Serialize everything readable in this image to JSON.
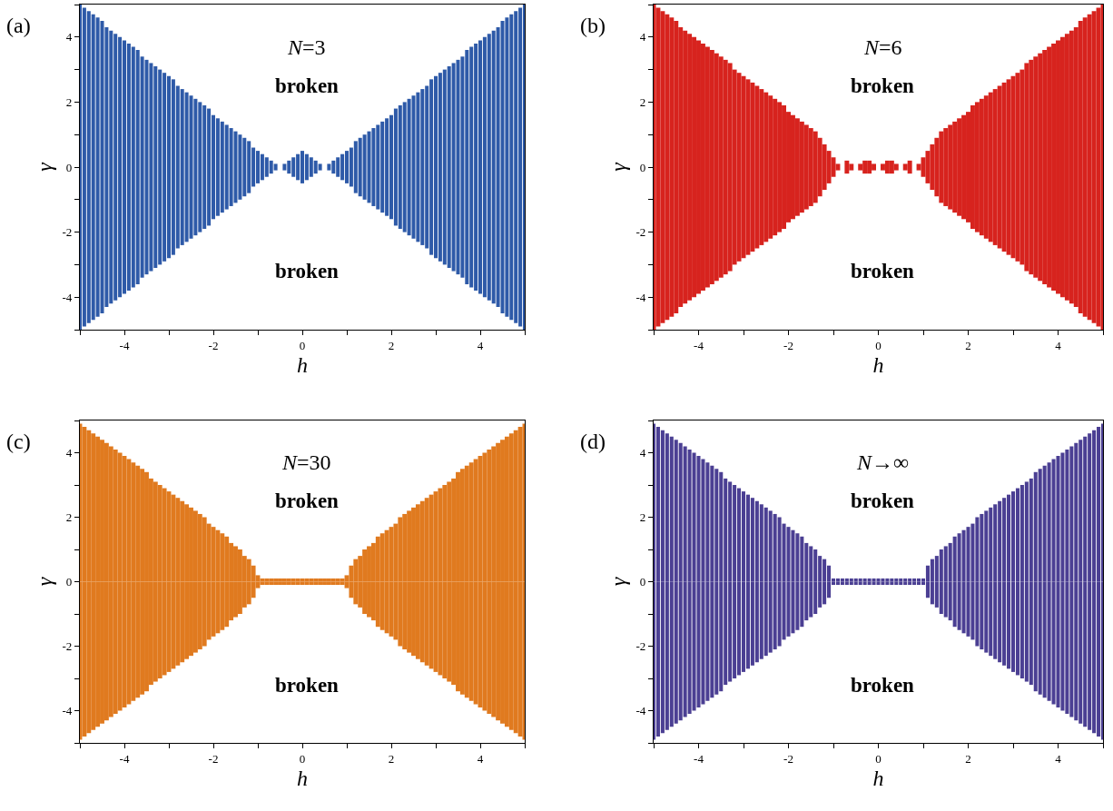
{
  "chart_data": [
    {
      "type": "bar",
      "stacked": true,
      "grid": false,
      "legend": false,
      "xlabel": "h",
      "ylabel": "γ",
      "annotations": [
        "(a)",
        "N=3",
        "broken",
        "broken"
      ],
      "xlim": [
        -5,
        5
      ],
      "ylim": [
        -5,
        5
      ],
      "xticks": [
        {
          "value": -5,
          "label": null
        },
        -4,
        {
          "value": -3,
          "label": null
        },
        -2,
        {
          "value": -1,
          "label": null
        },
        0,
        {
          "value": 1,
          "label": null
        },
        2,
        {
          "value": 3,
          "label": null
        },
        4,
        {
          "value": 5,
          "label": null
        }
      ],
      "yticks": [
        {
          "value": -5,
          "label": null
        },
        -4,
        {
          "value": -3,
          "label": null
        },
        -2,
        {
          "value": -1,
          "label": null
        },
        0,
        {
          "value": 1,
          "label": null
        },
        2,
        {
          "value": 3,
          "label": null
        },
        4,
        {
          "value": 5,
          "label": null
        }
      ],
      "x": [
        -5,
        -4.9,
        -4.8,
        -4.7,
        -4.6,
        -4.5,
        -4.4,
        -4.3,
        -4.2,
        -4.1,
        -4,
        -3.9,
        -3.8,
        -3.7,
        -3.6,
        -3.5,
        -3.4,
        -3.3,
        -3.2,
        -3.1,
        -3,
        -2.9,
        -2.8,
        -2.7,
        -2.6,
        -2.5,
        -2.4,
        -2.3,
        -2.2,
        -2.1,
        -2,
        -1.9,
        -1.8,
        -1.7,
        -1.6,
        -1.5,
        -1.4,
        -1.3,
        -1.2,
        -1.1,
        -1,
        -0.9,
        -0.8,
        -0.7,
        -0.6,
        -0.5,
        -0.4,
        -0.3,
        -0.2,
        -0.1,
        0,
        0.1,
        0.2,
        0.3,
        0.4,
        0.5,
        0.6,
        0.7,
        0.8,
        0.9,
        1,
        1.1,
        1.2,
        1.3,
        1.4,
        1.5,
        1.6,
        1.7,
        1.8,
        1.9,
        2,
        2.1,
        2.2,
        2.3,
        2.4,
        2.5,
        2.6,
        2.7,
        2.8,
        2.9,
        3,
        3.1,
        3.2,
        3.3,
        3.4,
        3.5,
        3.6,
        3.7,
        3.8,
        3.9,
        4,
        4.1,
        4.2,
        4.3,
        4.4,
        4.5,
        4.6,
        4.7,
        4.8,
        4.9,
        5
      ],
      "series": [
        {
          "color": "#2e5aa8",
          "values": [
            5,
            4.9,
            4.8,
            4.7,
            4.6,
            4.5,
            4.3,
            4.2,
            4.1,
            4,
            3.9,
            3.8,
            3.7,
            3.6,
            3.4,
            3.3,
            3.2,
            3.1,
            3,
            2.9,
            2.8,
            2.7,
            2.5,
            2.4,
            2.3,
            2.2,
            2.1,
            2,
            1.9,
            1.8,
            1.6,
            1.5,
            1.4,
            1.3,
            1.2,
            1.1,
            1,
            0.9,
            0.8,
            0.6,
            0.5,
            0.4,
            0.3,
            0.2,
            0.1,
            0,
            0.1,
            0.2,
            0.3,
            0.4,
            0.5,
            0.4,
            0.3,
            0.2,
            0.1,
            0,
            0.1,
            0.2,
            0.3,
            0.4,
            0.5,
            0.6,
            0.8,
            0.9,
            1,
            1.1,
            1.2,
            1.3,
            1.4,
            1.5,
            1.6,
            1.8,
            1.9,
            2,
            2.1,
            2.2,
            2.3,
            2.4,
            2.5,
            2.7,
            2.8,
            2.9,
            3,
            3.1,
            3.2,
            3.3,
            3.4,
            3.6,
            3.7,
            3.8,
            3.9,
            4,
            4.1,
            4.2,
            4.3,
            4.5,
            4.6,
            4.7,
            4.8,
            4.9,
            5
          ]
        },
        {
          "color": "#2e5aa8",
          "values": [
            -5,
            -4.9,
            -4.8,
            -4.7,
            -4.6,
            -4.5,
            -4.3,
            -4.2,
            -4.1,
            -4,
            -3.9,
            -3.8,
            -3.7,
            -3.6,
            -3.4,
            -3.3,
            -3.2,
            -3.1,
            -3,
            -2.9,
            -2.8,
            -2.7,
            -2.5,
            -2.4,
            -2.3,
            -2.2,
            -2.1,
            -2,
            -1.9,
            -1.8,
            -1.6,
            -1.5,
            -1.4,
            -1.3,
            -1.2,
            -1.1,
            -1,
            -0.9,
            -0.8,
            -0.6,
            -0.5,
            -0.4,
            -0.3,
            -0.2,
            -0.1,
            0,
            -0.1,
            -0.2,
            -0.3,
            -0.4,
            -0.5,
            -0.4,
            -0.3,
            -0.2,
            -0.1,
            0,
            -0.1,
            -0.2,
            -0.3,
            -0.4,
            -0.5,
            -0.6,
            -0.8,
            -0.9,
            -1,
            -1.1,
            -1.2,
            -1.3,
            -1.4,
            -1.5,
            -1.6,
            -1.8,
            -1.9,
            -2,
            -2.1,
            -2.2,
            -2.3,
            -2.4,
            -2.5,
            -2.7,
            -2.8,
            -2.9,
            -3,
            -3.1,
            -3.2,
            -3.3,
            -3.4,
            -3.6,
            -3.7,
            -3.8,
            -3.9,
            -4,
            -4.1,
            -4.2,
            -4.3,
            -4.5,
            -4.6,
            -4.7,
            -4.8,
            -4.9,
            -5
          ]
        }
      ]
    },
    {
      "type": "bar",
      "stacked": true,
      "grid": false,
      "legend": false,
      "xlabel": "h",
      "ylabel": "γ",
      "annotations": [
        "(b)",
        "N=6",
        "broken",
        "broken"
      ],
      "xlim": [
        -5,
        5
      ],
      "ylim": [
        -5,
        5
      ],
      "xticks": [
        {
          "value": -5,
          "label": null
        },
        -4,
        {
          "value": -3,
          "label": null
        },
        -2,
        {
          "value": -1,
          "label": null
        },
        0,
        {
          "value": 1,
          "label": null
        },
        2,
        {
          "value": 3,
          "label": null
        },
        4,
        {
          "value": 5,
          "label": null
        }
      ],
      "yticks": [
        {
          "value": -5,
          "label": null
        },
        -4,
        {
          "value": -3,
          "label": null
        },
        -2,
        {
          "value": -1,
          "label": null
        },
        0,
        {
          "value": 1,
          "label": null
        },
        2,
        {
          "value": 3,
          "label": null
        },
        4,
        {
          "value": 5,
          "label": null
        }
      ],
      "x": [
        -5,
        -4.9,
        -4.8,
        -4.7,
        -4.6,
        -4.5,
        -4.4,
        -4.3,
        -4.2,
        -4.1,
        -4,
        -3.9,
        -3.8,
        -3.7,
        -3.6,
        -3.5,
        -3.4,
        -3.3,
        -3.2,
        -3.1,
        -3,
        -2.9,
        -2.8,
        -2.7,
        -2.6,
        -2.5,
        -2.4,
        -2.3,
        -2.2,
        -2.1,
        -2,
        -1.9,
        -1.8,
        -1.7,
        -1.6,
        -1.5,
        -1.4,
        -1.3,
        -1.2,
        -1.1,
        -1,
        -0.9,
        -0.8,
        -0.7,
        -0.6,
        -0.5,
        -0.4,
        -0.3,
        -0.2,
        -0.1,
        0,
        0.1,
        0.2,
        0.3,
        0.4,
        0.5,
        0.6,
        0.7,
        0.8,
        0.9,
        1,
        1.1,
        1.2,
        1.3,
        1.4,
        1.5,
        1.6,
        1.7,
        1.8,
        1.9,
        2,
        2.1,
        2.2,
        2.3,
        2.4,
        2.5,
        2.6,
        2.7,
        2.8,
        2.9,
        3,
        3.1,
        3.2,
        3.3,
        3.4,
        3.5,
        3.6,
        3.7,
        3.8,
        3.9,
        4,
        4.1,
        4.2,
        4.3,
        4.4,
        4.5,
        4.6,
        4.7,
        4.8,
        4.9,
        5
      ],
      "series": [
        {
          "color": "#d7231e",
          "values": [
            5,
            4.9,
            4.8,
            4.7,
            4.6,
            4.5,
            4.3,
            4.2,
            4.1,
            4,
            3.9,
            3.8,
            3.7,
            3.6,
            3.5,
            3.4,
            3.3,
            3.2,
            3,
            2.9,
            2.8,
            2.7,
            2.6,
            2.5,
            2.4,
            2.3,
            2.2,
            2.1,
            2,
            1.9,
            1.7,
            1.6,
            1.5,
            1.4,
            1.3,
            1.2,
            1.1,
            0.9,
            0.7,
            0.5,
            0.3,
            0.1,
            0,
            0.2,
            0.1,
            0,
            0.1,
            0.2,
            0.2,
            0.1,
            0,
            0.1,
            0.2,
            0.2,
            0.1,
            0,
            0.1,
            0.2,
            0,
            0.1,
            0.3,
            0.5,
            0.7,
            0.9,
            1.1,
            1.2,
            1.3,
            1.4,
            1.5,
            1.6,
            1.7,
            1.9,
            2,
            2.1,
            2.2,
            2.3,
            2.4,
            2.5,
            2.6,
            2.7,
            2.8,
            2.9,
            3,
            3.2,
            3.3,
            3.4,
            3.5,
            3.6,
            3.7,
            3.8,
            3.9,
            4,
            4.1,
            4.2,
            4.3,
            4.5,
            4.6,
            4.7,
            4.8,
            4.9,
            5
          ]
        },
        {
          "color": "#d7231e",
          "values": [
            -5,
            -4.9,
            -4.8,
            -4.7,
            -4.6,
            -4.5,
            -4.3,
            -4.2,
            -4.1,
            -4,
            -3.9,
            -3.8,
            -3.7,
            -3.6,
            -3.5,
            -3.4,
            -3.3,
            -3.2,
            -3,
            -2.9,
            -2.8,
            -2.7,
            -2.6,
            -2.5,
            -2.4,
            -2.3,
            -2.2,
            -2.1,
            -2,
            -1.9,
            -1.7,
            -1.6,
            -1.5,
            -1.4,
            -1.3,
            -1.2,
            -1.1,
            -0.9,
            -0.7,
            -0.5,
            -0.3,
            -0.1,
            0,
            -0.2,
            -0.1,
            0,
            -0.1,
            -0.2,
            -0.2,
            -0.1,
            0,
            -0.1,
            -0.2,
            -0.2,
            -0.1,
            0,
            -0.1,
            -0.2,
            0,
            -0.1,
            -0.3,
            -0.5,
            -0.7,
            -0.9,
            -1.1,
            -1.2,
            -1.3,
            -1.4,
            -1.5,
            -1.6,
            -1.7,
            -1.9,
            -2,
            -2.1,
            -2.2,
            -2.3,
            -2.4,
            -2.5,
            -2.6,
            -2.7,
            -2.8,
            -2.9,
            -3,
            -3.2,
            -3.3,
            -3.4,
            -3.5,
            -3.6,
            -3.7,
            -3.8,
            -3.9,
            -4,
            -4.1,
            -4.2,
            -4.3,
            -4.5,
            -4.6,
            -4.7,
            -4.8,
            -4.9,
            -5
          ]
        }
      ]
    },
    {
      "type": "bar",
      "stacked": true,
      "grid": false,
      "legend": false,
      "xlabel": "h",
      "ylabel": "γ",
      "annotations": [
        "(c)",
        "N=30",
        "broken",
        "broken"
      ],
      "xlim": [
        -5,
        5
      ],
      "ylim": [
        -5,
        5
      ],
      "xticks": [
        {
          "value": -5,
          "label": null
        },
        -4,
        {
          "value": -3,
          "label": null
        },
        -2,
        {
          "value": -1,
          "label": null
        },
        0,
        {
          "value": 1,
          "label": null
        },
        2,
        {
          "value": 3,
          "label": null
        },
        4,
        {
          "value": 5,
          "label": null
        }
      ],
      "yticks": [
        {
          "value": -5,
          "label": null
        },
        -4,
        {
          "value": -3,
          "label": null
        },
        -2,
        {
          "value": -1,
          "label": null
        },
        0,
        {
          "value": 1,
          "label": null
        },
        2,
        {
          "value": 3,
          "label": null
        },
        4,
        {
          "value": 5,
          "label": null
        }
      ],
      "x": [
        -5,
        -4.9,
        -4.8,
        -4.7,
        -4.6,
        -4.5,
        -4.4,
        -4.3,
        -4.2,
        -4.1,
        -4,
        -3.9,
        -3.8,
        -3.7,
        -3.6,
        -3.5,
        -3.4,
        -3.3,
        -3.2,
        -3.1,
        -3,
        -2.9,
        -2.8,
        -2.7,
        -2.6,
        -2.5,
        -2.4,
        -2.3,
        -2.2,
        -2.1,
        -2,
        -1.9,
        -1.8,
        -1.7,
        -1.6,
        -1.5,
        -1.4,
        -1.3,
        -1.2,
        -1.1,
        -1,
        -0.9,
        -0.8,
        -0.7,
        -0.6,
        -0.5,
        -0.4,
        -0.3,
        -0.2,
        -0.1,
        0,
        0.1,
        0.2,
        0.3,
        0.4,
        0.5,
        0.6,
        0.7,
        0.8,
        0.9,
        1,
        1.1,
        1.2,
        1.3,
        1.4,
        1.5,
        1.6,
        1.7,
        1.8,
        1.9,
        2,
        2.1,
        2.2,
        2.3,
        2.4,
        2.5,
        2.6,
        2.7,
        2.8,
        2.9,
        3,
        3.1,
        3.2,
        3.3,
        3.4,
        3.5,
        3.6,
        3.7,
        3.8,
        3.9,
        4,
        4.1,
        4.2,
        4.3,
        4.4,
        4.5,
        4.6,
        4.7,
        4.8,
        4.9,
        5
      ],
      "series": [
        {
          "color": "#e07a1f",
          "values": [
            4.9,
            4.8,
            4.7,
            4.6,
            4.5,
            4.4,
            4.3,
            4.2,
            4.1,
            4,
            3.9,
            3.8,
            3.7,
            3.6,
            3.5,
            3.4,
            3.2,
            3.1,
            3,
            2.9,
            2.8,
            2.7,
            2.6,
            2.5,
            2.4,
            2.3,
            2.2,
            2.1,
            2,
            1.8,
            1.7,
            1.6,
            1.5,
            1.4,
            1.2,
            1.1,
            1,
            0.8,
            0.7,
            0.5,
            0.2,
            0.1,
            0.1,
            0.1,
            0.1,
            0.1,
            0.1,
            0.1,
            0.1,
            0.1,
            0.1,
            0.1,
            0.1,
            0.1,
            0.1,
            0.1,
            0.1,
            0.1,
            0.1,
            0.1,
            0.2,
            0.5,
            0.7,
            0.8,
            1,
            1.1,
            1.2,
            1.4,
            1.5,
            1.6,
            1.7,
            1.8,
            2,
            2.1,
            2.2,
            2.3,
            2.4,
            2.5,
            2.6,
            2.7,
            2.8,
            2.9,
            3,
            3.1,
            3.2,
            3.4,
            3.5,
            3.6,
            3.7,
            3.8,
            3.9,
            4,
            4.1,
            4.2,
            4.3,
            4.4,
            4.5,
            4.6,
            4.7,
            4.8,
            4.9
          ]
        },
        {
          "color": "#e07a1f",
          "values": [
            -4.9,
            -4.8,
            -4.7,
            -4.6,
            -4.5,
            -4.4,
            -4.3,
            -4.2,
            -4.1,
            -4,
            -3.9,
            -3.8,
            -3.7,
            -3.6,
            -3.5,
            -3.4,
            -3.2,
            -3.1,
            -3,
            -2.9,
            -2.8,
            -2.7,
            -2.6,
            -2.5,
            -2.4,
            -2.3,
            -2.2,
            -2.1,
            -2,
            -1.8,
            -1.7,
            -1.6,
            -1.5,
            -1.4,
            -1.2,
            -1.1,
            -1,
            -0.8,
            -0.7,
            -0.5,
            -0.2,
            -0.1,
            -0.1,
            -0.1,
            -0.1,
            -0.1,
            -0.1,
            -0.1,
            -0.1,
            -0.1,
            -0.1,
            -0.1,
            -0.1,
            -0.1,
            -0.1,
            -0.1,
            -0.1,
            -0.1,
            -0.1,
            -0.1,
            -0.2,
            -0.5,
            -0.7,
            -0.8,
            -1,
            -1.1,
            -1.2,
            -1.4,
            -1.5,
            -1.6,
            -1.7,
            -1.8,
            -2,
            -2.1,
            -2.2,
            -2.3,
            -2.4,
            -2.5,
            -2.6,
            -2.7,
            -2.8,
            -2.9,
            -3,
            -3.1,
            -3.2,
            -3.4,
            -3.5,
            -3.6,
            -3.7,
            -3.8,
            -3.9,
            -4,
            -4.1,
            -4.2,
            -4.3,
            -4.4,
            -4.5,
            -4.6,
            -4.7,
            -4.8,
            -4.9
          ]
        }
      ]
    },
    {
      "type": "bar",
      "stacked": true,
      "grid": false,
      "legend": false,
      "xlabel": "h",
      "ylabel": "γ",
      "annotations": [
        "(d)",
        "N→∞",
        "broken",
        "broken"
      ],
      "xlim": [
        -5,
        5
      ],
      "ylim": [
        -5,
        5
      ],
      "xticks": [
        {
          "value": -5,
          "label": null
        },
        -4,
        {
          "value": -3,
          "label": null
        },
        -2,
        {
          "value": -1,
          "label": null
        },
        0,
        {
          "value": 1,
          "label": null
        },
        2,
        {
          "value": 3,
          "label": null
        },
        4,
        {
          "value": 5,
          "label": null
        }
      ],
      "yticks": [
        {
          "value": -5,
          "label": null
        },
        -4,
        {
          "value": -3,
          "label": null
        },
        -2,
        {
          "value": -1,
          "label": null
        },
        0,
        {
          "value": 1,
          "label": null
        },
        2,
        {
          "value": 3,
          "label": null
        },
        4,
        {
          "value": 5,
          "label": null
        }
      ],
      "x": [
        -5,
        -4.9,
        -4.8,
        -4.7,
        -4.6,
        -4.5,
        -4.4,
        -4.3,
        -4.2,
        -4.1,
        -4,
        -3.9,
        -3.8,
        -3.7,
        -3.6,
        -3.5,
        -3.4,
        -3.3,
        -3.2,
        -3.1,
        -3,
        -2.9,
        -2.8,
        -2.7,
        -2.6,
        -2.5,
        -2.4,
        -2.3,
        -2.2,
        -2.1,
        -2,
        -1.9,
        -1.8,
        -1.7,
        -1.6,
        -1.5,
        -1.4,
        -1.3,
        -1.2,
        -1.1,
        -1,
        -0.9,
        -0.8,
        -0.7,
        -0.6,
        -0.5,
        -0.4,
        -0.3,
        -0.2,
        -0.1,
        0,
        0.1,
        0.2,
        0.3,
        0.4,
        0.5,
        0.6,
        0.7,
        0.8,
        0.9,
        1,
        1.1,
        1.2,
        1.3,
        1.4,
        1.5,
        1.6,
        1.7,
        1.8,
        1.9,
        2,
        2.1,
        2.2,
        2.3,
        2.4,
        2.5,
        2.6,
        2.7,
        2.8,
        2.9,
        3,
        3.1,
        3.2,
        3.3,
        3.4,
        3.5,
        3.6,
        3.7,
        3.8,
        3.9,
        4,
        4.1,
        4.2,
        4.3,
        4.4,
        4.5,
        4.6,
        4.7,
        4.8,
        4.9,
        5
      ],
      "series": [
        {
          "color": "#4b3f93",
          "values": [
            4.9,
            4.8,
            4.7,
            4.6,
            4.5,
            4.4,
            4.3,
            4.2,
            4.1,
            4,
            3.9,
            3.8,
            3.7,
            3.6,
            3.5,
            3.4,
            3.2,
            3.1,
            3,
            2.9,
            2.8,
            2.7,
            2.6,
            2.5,
            2.4,
            2.3,
            2.2,
            2.1,
            2,
            1.8,
            1.7,
            1.6,
            1.5,
            1.4,
            1.2,
            1.1,
            1,
            0.8,
            0.7,
            0.5,
            0.1,
            0.1,
            0.1,
            0.1,
            0.1,
            0.1,
            0.1,
            0.1,
            0.1,
            0.1,
            0.1,
            0.1,
            0.1,
            0.1,
            0.1,
            0.1,
            0.1,
            0.1,
            0.1,
            0.1,
            0.1,
            0.5,
            0.7,
            0.8,
            1,
            1.1,
            1.2,
            1.4,
            1.5,
            1.6,
            1.7,
            1.8,
            2,
            2.1,
            2.2,
            2.3,
            2.4,
            2.5,
            2.6,
            2.7,
            2.8,
            2.9,
            3,
            3.1,
            3.2,
            3.4,
            3.5,
            3.6,
            3.7,
            3.8,
            3.9,
            4,
            4.1,
            4.2,
            4.3,
            4.4,
            4.5,
            4.6,
            4.7,
            4.8,
            4.9
          ]
        },
        {
          "color": "#4b3f93",
          "values": [
            -4.9,
            -4.8,
            -4.7,
            -4.6,
            -4.5,
            -4.4,
            -4.3,
            -4.2,
            -4.1,
            -4,
            -3.9,
            -3.8,
            -3.7,
            -3.6,
            -3.5,
            -3.4,
            -3.2,
            -3.1,
            -3,
            -2.9,
            -2.8,
            -2.7,
            -2.6,
            -2.5,
            -2.4,
            -2.3,
            -2.2,
            -2.1,
            -2,
            -1.8,
            -1.7,
            -1.6,
            -1.5,
            -1.4,
            -1.2,
            -1.1,
            -1,
            -0.8,
            -0.7,
            -0.5,
            -0.1,
            -0.1,
            -0.1,
            -0.1,
            -0.1,
            -0.1,
            -0.1,
            -0.1,
            -0.1,
            -0.1,
            -0.1,
            -0.1,
            -0.1,
            -0.1,
            -0.1,
            -0.1,
            -0.1,
            -0.1,
            -0.1,
            -0.1,
            -0.1,
            -0.5,
            -0.7,
            -0.8,
            -1,
            -1.1,
            -1.2,
            -1.4,
            -1.5,
            -1.6,
            -1.7,
            -1.8,
            -2,
            -2.1,
            -2.2,
            -2.3,
            -2.4,
            -2.5,
            -2.6,
            -2.7,
            -2.8,
            -2.9,
            -3,
            -3.1,
            -3.2,
            -3.4,
            -3.5,
            -3.6,
            -3.7,
            -3.8,
            -3.9,
            -4,
            -4.1,
            -4.2,
            -4.3,
            -4.4,
            -4.5,
            -4.6,
            -4.7,
            -4.8,
            -4.9
          ]
        }
      ]
    }
  ]
}
